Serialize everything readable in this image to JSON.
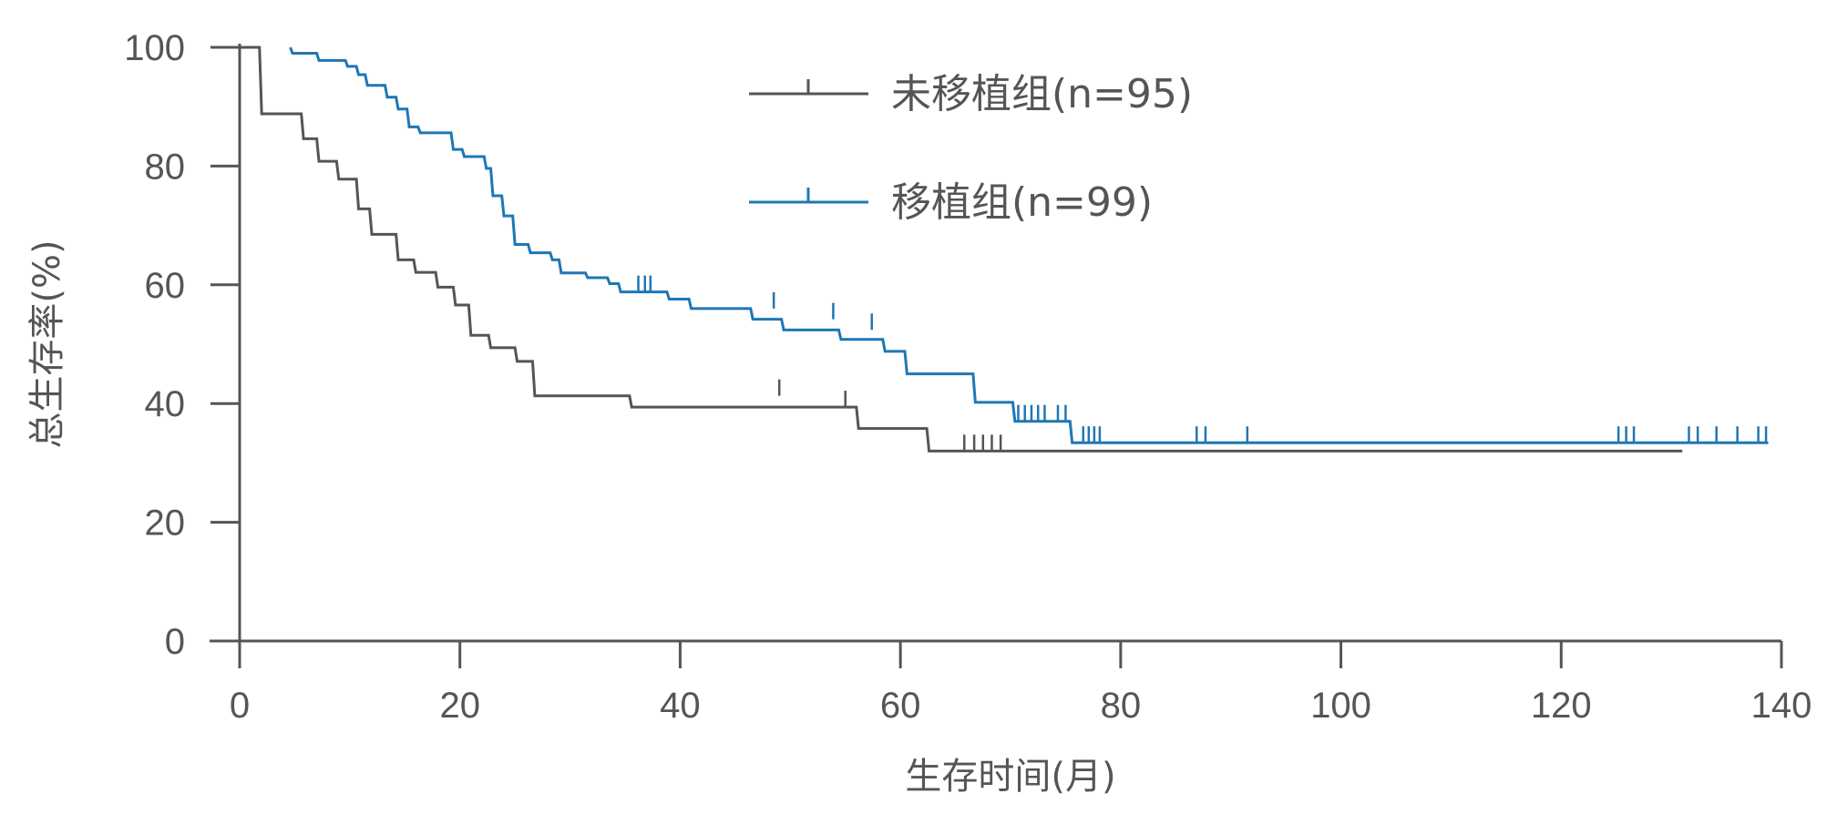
{
  "chart_data": {
    "type": "line",
    "subtype": "kaplan-meier",
    "xlabel": "生存时间(月)",
    "ylabel": "总生存率(%)",
    "xlim": [
      0,
      140
    ],
    "ylim": [
      0,
      100
    ],
    "xticks": [
      0,
      20,
      40,
      60,
      80,
      100,
      120,
      140
    ],
    "yticks": [
      0,
      20,
      40,
      60,
      80,
      100
    ],
    "grid": false,
    "legend_position": "top-center",
    "series": [
      {
        "name": "未移植组(n=95)",
        "color": "#555555",
        "steps": [
          [
            0,
            100
          ],
          [
            1.8,
            100
          ],
          [
            2,
            88.8
          ],
          [
            5.6,
            88.8
          ],
          [
            5.8,
            84.6
          ],
          [
            7,
            84.6
          ],
          [
            7.2,
            80.8
          ],
          [
            8.8,
            80.8
          ],
          [
            9,
            77.8
          ],
          [
            10.6,
            77.8
          ],
          [
            10.8,
            72.8
          ],
          [
            11.8,
            72.8
          ],
          [
            12,
            68.5
          ],
          [
            14.2,
            68.5
          ],
          [
            14.4,
            64.2
          ],
          [
            15.8,
            64.2
          ],
          [
            16,
            62.1
          ],
          [
            17.8,
            62.1
          ],
          [
            18,
            59.6
          ],
          [
            19.4,
            59.6
          ],
          [
            19.6,
            56.6
          ],
          [
            20.8,
            56.6
          ],
          [
            21,
            51.5
          ],
          [
            22.6,
            51.5
          ],
          [
            22.8,
            49.4
          ],
          [
            25,
            49.4
          ],
          [
            25.2,
            47.1
          ],
          [
            26.6,
            47.1
          ],
          [
            26.8,
            41.3
          ],
          [
            35.4,
            41.3
          ],
          [
            35.6,
            39.4
          ],
          [
            56,
            39.4
          ],
          [
            56.2,
            35.8
          ],
          [
            62.4,
            35.8
          ],
          [
            62.6,
            32.0
          ],
          [
            131,
            32.0
          ]
        ],
        "censored": [
          [
            49,
            41.3
          ],
          [
            55,
            39.4
          ],
          [
            65.8,
            32.0
          ],
          [
            66.7,
            32.0
          ],
          [
            67.5,
            32.0
          ],
          [
            68.3,
            32.0
          ],
          [
            69.1,
            32.0
          ]
        ]
      },
      {
        "name": "移植组(n=99)",
        "color": "#1f77b4",
        "steps": [
          [
            4.6,
            100
          ],
          [
            4.8,
            99.0
          ],
          [
            7,
            99.0
          ],
          [
            7.2,
            97.8
          ],
          [
            9.6,
            97.8
          ],
          [
            9.8,
            96.8
          ],
          [
            10.6,
            96.8
          ],
          [
            10.8,
            95.4
          ],
          [
            11.4,
            95.4
          ],
          [
            11.6,
            93.6
          ],
          [
            13.2,
            93.6
          ],
          [
            13.4,
            91.6
          ],
          [
            14.2,
            91.6
          ],
          [
            14.4,
            89.6
          ],
          [
            15.2,
            89.6
          ],
          [
            15.4,
            86.6
          ],
          [
            16.2,
            86.6
          ],
          [
            16.4,
            85.6
          ],
          [
            19.2,
            85.6
          ],
          [
            19.4,
            82.8
          ],
          [
            20.2,
            82.8
          ],
          [
            20.4,
            81.6
          ],
          [
            22.2,
            81.6
          ],
          [
            22.4,
            79.6
          ],
          [
            22.8,
            79.6
          ],
          [
            23,
            75.0
          ],
          [
            23.8,
            75.0
          ],
          [
            24,
            71.6
          ],
          [
            24.8,
            71.6
          ],
          [
            25,
            66.8
          ],
          [
            26.2,
            66.8
          ],
          [
            26.4,
            65.4
          ],
          [
            28.2,
            65.4
          ],
          [
            28.4,
            64.2
          ],
          [
            29,
            64.2
          ],
          [
            29.2,
            62.0
          ],
          [
            31.4,
            62.0
          ],
          [
            31.6,
            61.2
          ],
          [
            33.4,
            61.2
          ],
          [
            33.6,
            60.2
          ],
          [
            34.4,
            60.2
          ],
          [
            34.6,
            58.8
          ],
          [
            38.8,
            58.8
          ],
          [
            39,
            57.6
          ],
          [
            40.8,
            57.6
          ],
          [
            41,
            56.0
          ],
          [
            46.4,
            56.0
          ],
          [
            46.6,
            54.2
          ],
          [
            49.2,
            54.2
          ],
          [
            49.4,
            52.4
          ],
          [
            54.4,
            52.4
          ],
          [
            54.6,
            50.8
          ],
          [
            58.4,
            50.8
          ],
          [
            58.6,
            48.8
          ],
          [
            60.4,
            48.8
          ],
          [
            60.6,
            45.0
          ],
          [
            66.6,
            45.0
          ],
          [
            66.8,
            40.2
          ],
          [
            70.2,
            40.2
          ],
          [
            70.4,
            37.0
          ],
          [
            75.4,
            37.0
          ],
          [
            75.6,
            33.4
          ],
          [
            138.8,
            33.4
          ]
        ],
        "censored": [
          [
            36.2,
            58.8
          ],
          [
            36.8,
            58.8
          ],
          [
            37.3,
            58.8
          ],
          [
            48.5,
            56.0
          ],
          [
            53.9,
            54.2
          ],
          [
            57.4,
            52.4
          ],
          [
            70.7,
            37.0
          ],
          [
            71.3,
            37.0
          ],
          [
            71.9,
            37.0
          ],
          [
            72.5,
            37.0
          ],
          [
            73.1,
            37.0
          ],
          [
            74.3,
            37.0
          ],
          [
            75.0,
            37.0
          ],
          [
            76.6,
            33.4
          ],
          [
            77.1,
            33.4
          ],
          [
            77.6,
            33.4
          ],
          [
            78.1,
            33.4
          ],
          [
            86.9,
            33.4
          ],
          [
            87.7,
            33.4
          ],
          [
            91.5,
            33.4
          ],
          [
            125.2,
            33.4
          ],
          [
            125.9,
            33.4
          ],
          [
            126.6,
            33.4
          ],
          [
            131.6,
            33.4
          ],
          [
            132.4,
            33.4
          ],
          [
            134.1,
            33.4
          ],
          [
            136.0,
            33.4
          ],
          [
            137.9,
            33.4
          ],
          [
            138.6,
            33.4
          ]
        ]
      }
    ]
  }
}
